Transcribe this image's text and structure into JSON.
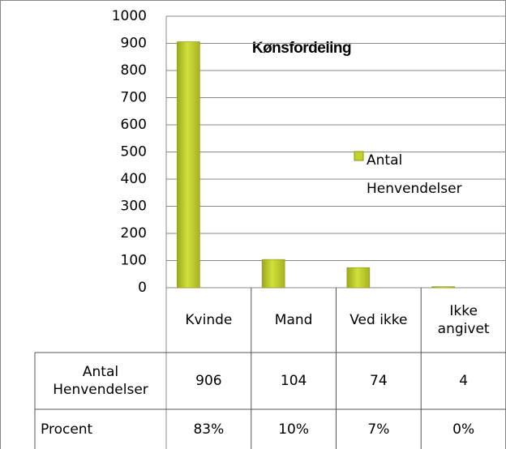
{
  "chart_data": {
    "type": "bar",
    "title": "Kønsfordeling",
    "categories": [
      "Kvinde",
      "Mand",
      "Ved ikke",
      "Ikke angivet"
    ],
    "series": [
      {
        "name": "Antal Henvendelser",
        "color": "#c3d32b",
        "values": [
          906,
          104,
          74,
          4
        ]
      }
    ],
    "ylim": [
      0,
      1000
    ],
    "yticks": [
      0,
      100,
      200,
      300,
      400,
      500,
      600,
      700,
      800,
      900,
      1000
    ],
    "grid": true,
    "data_table": {
      "rows": [
        {
          "label": "Procent",
          "cells": [
            "83%",
            "10%",
            "7%",
            "0%"
          ]
        }
      ]
    }
  }
}
